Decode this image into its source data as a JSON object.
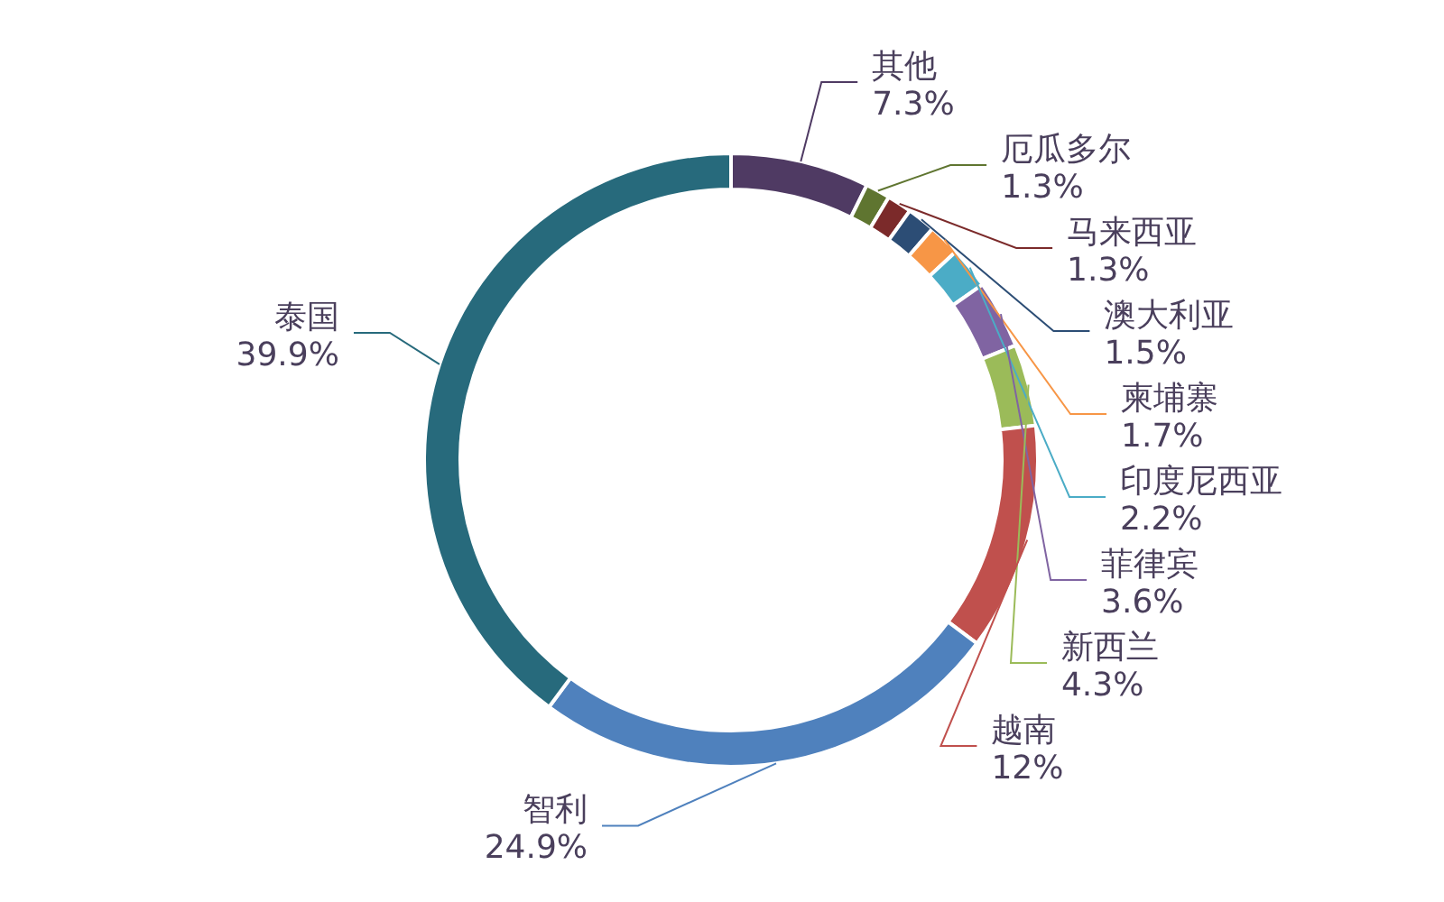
{
  "chart_data": {
    "type": "donut",
    "categories": [
      "其他",
      "厄瓜多尔",
      "马来西亚",
      "澳大利亚",
      "柬埔寨",
      "印度尼西亚",
      "菲律宾",
      "新西兰",
      "越南",
      "智利",
      "泰国"
    ],
    "values": [
      7.3,
      1.3,
      1.3,
      1.5,
      1.7,
      2.2,
      3.6,
      4.3,
      12,
      24.9,
      39.9
    ],
    "value_labels": [
      "7.3%",
      "1.3%",
      "1.3%",
      "1.5%",
      "1.7%",
      "2.2%",
      "3.6%",
      "4.3%",
      "12%",
      "24.9%",
      "39.9%"
    ],
    "colors": [
      "#4f3a63",
      "#5f7530",
      "#7b2a2a",
      "#2c4d75",
      "#f79646",
      "#4bacc6",
      "#8064a2",
      "#9bbb59",
      "#c0504d",
      "#4f81bd",
      "#276a7c"
    ]
  }
}
